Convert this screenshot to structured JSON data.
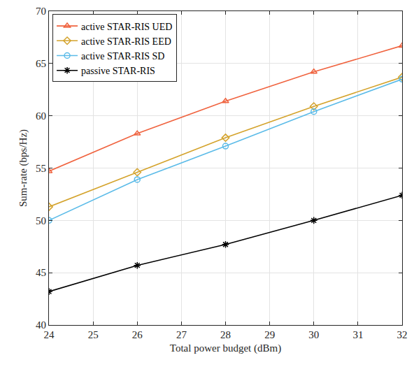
{
  "chart_data": {
    "type": "line",
    "x_label": "Total power budget (dBm)",
    "y_label": "Sum-rate (bps/Hz)",
    "x": [
      24,
      26,
      28,
      30,
      32
    ],
    "series": [
      {
        "name": "active STAR-RIS UED",
        "color": "#f0633f",
        "marker": "triangle",
        "values": [
          54.7,
          58.3,
          61.4,
          64.2,
          66.7
        ]
      },
      {
        "name": "active STAR-RIS EED",
        "color": "#d4a32c",
        "marker": "diamond",
        "values": [
          51.3,
          54.6,
          57.9,
          60.9,
          63.7
        ]
      },
      {
        "name": "active STAR-RIS SD",
        "color": "#5bbbe8",
        "marker": "circle",
        "values": [
          50.0,
          53.9,
          57.1,
          60.4,
          63.5
        ]
      },
      {
        "name": "passive STAR-RIS",
        "color": "#000000",
        "marker": "asterisk",
        "values": [
          43.2,
          45.7,
          47.7,
          50.0,
          52.4
        ]
      }
    ],
    "xlim": [
      24,
      32
    ],
    "xticks": [
      24,
      25,
      26,
      27,
      28,
      29,
      30,
      31,
      32
    ],
    "ylim": [
      40,
      70
    ],
    "yticks": [
      40,
      45,
      50,
      55,
      60,
      65,
      70
    ],
    "grid": true,
    "legend": "upper left"
  }
}
